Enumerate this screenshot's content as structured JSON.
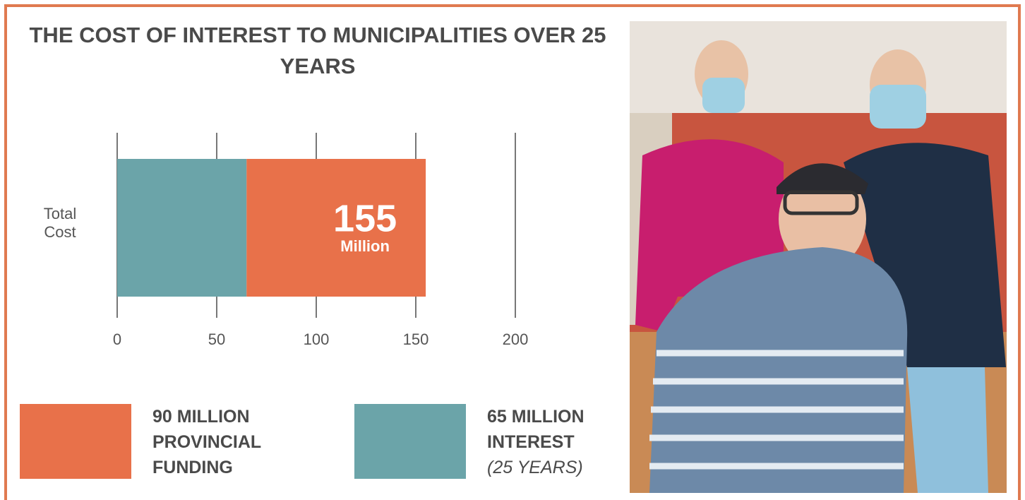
{
  "chart_data": {
    "type": "stacked-barh",
    "title": "THE COST OF INTEREST TO MUNICIPALITIES OVER 25 YEARS",
    "categories": [
      "Total Cost"
    ],
    "series": [
      {
        "name": "90 MILLION PROVINCIAL FUNDING",
        "color": "#e8714a",
        "values": [
          90
        ]
      },
      {
        "name": "65 MILLION INTEREST",
        "note": "(25 YEARS)",
        "color": "#6ba4a9",
        "values": [
          65
        ]
      }
    ],
    "total_label": {
      "value": 155,
      "unit": "Million"
    },
    "xlim": [
      0,
      200
    ],
    "xticks": [
      0,
      50,
      100,
      150,
      200
    ],
    "grid": true
  }
}
